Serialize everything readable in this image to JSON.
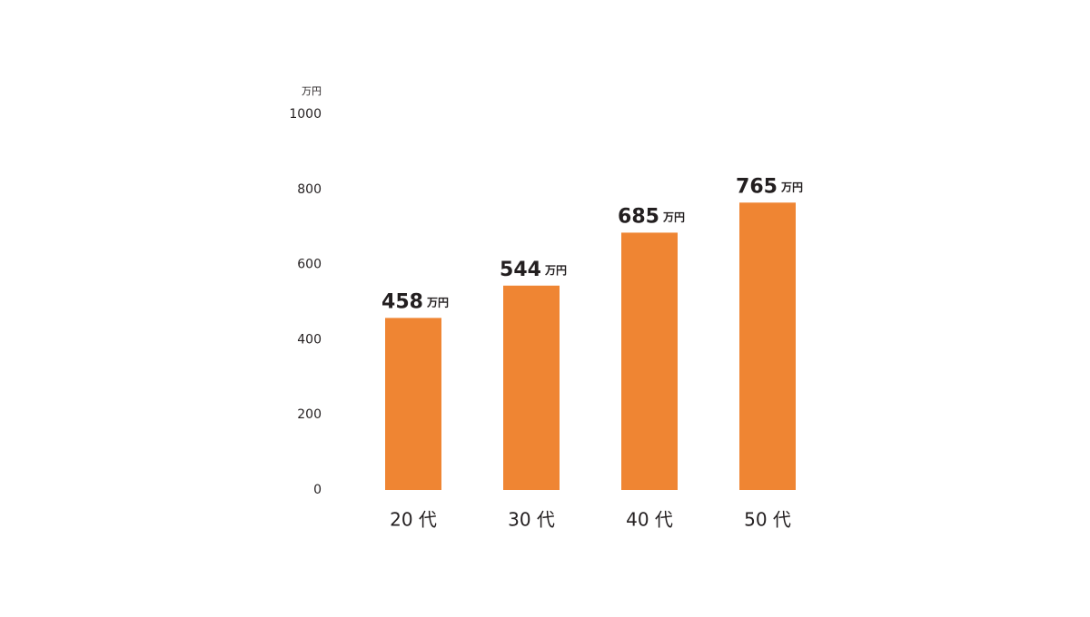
{
  "chart_data": {
    "type": "bar",
    "y_label": "万円",
    "categories": [
      "20 代",
      "30 代",
      "40 代",
      "50 代"
    ],
    "values": [
      458,
      544,
      685,
      765
    ],
    "value_labels": [
      "458万円",
      "544万円",
      "685万円",
      "765万円"
    ],
    "color": "#ef8533",
    "ylim": [
      0,
      1000
    ],
    "yticks": [
      0,
      200,
      400,
      600,
      800,
      1000
    ],
    "grid": false
  }
}
